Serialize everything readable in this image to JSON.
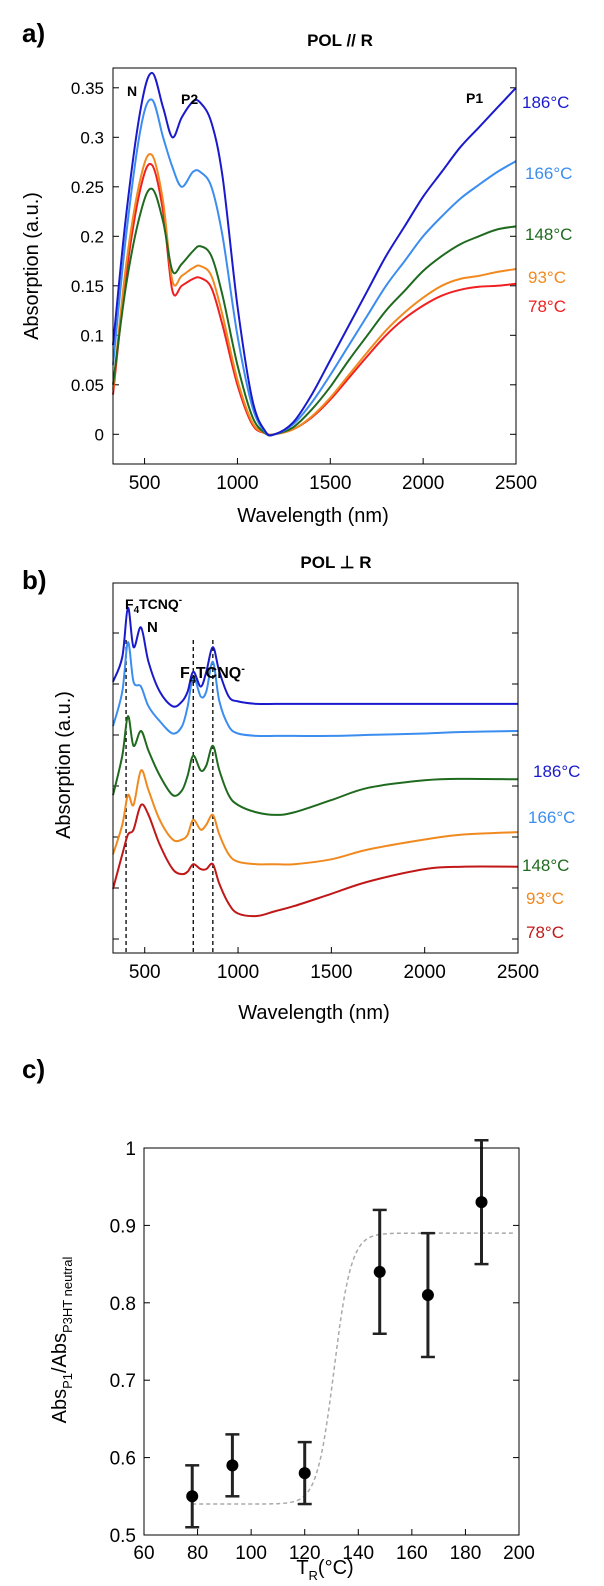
{
  "chart_data": [
    {
      "panel_label": "a)",
      "type": "line",
      "title": "POL // R",
      "xlabel": "Wavelength (nm)",
      "ylabel": "Absorption (a.u.)",
      "xlim": [
        330,
        2500
      ],
      "ylim": [
        -0.03,
        0.37
      ],
      "xticks": [
        500,
        1000,
        1500,
        2000,
        2500
      ],
      "yticks": [
        0,
        0.05,
        0.1,
        0.15,
        0.2,
        0.25,
        0.3,
        0.35
      ],
      "ytick_labels": [
        "0",
        "0.05",
        "0.1",
        "0.15",
        "0.2",
        "0.25",
        "0.3",
        "0.35"
      ],
      "annotations": [
        {
          "text": "N",
          "x": 440,
          "y": 0.355
        },
        {
          "text": "P2",
          "x": 790,
          "y": 0.345
        },
        {
          "text": "P1",
          "x": 2230,
          "y": 0.345
        }
      ],
      "x": [
        330,
        400,
        480,
        540,
        600,
        650,
        700,
        760,
        800,
        860,
        920,
        1000,
        1080,
        1150,
        1200,
        1300,
        1400,
        1500,
        1600,
        1700,
        1800,
        1900,
        2000,
        2100,
        2200,
        2300,
        2400,
        2500
      ],
      "series": [
        {
          "name": "186°C",
          "color": "#1a1acc",
          "values": [
            0.09,
            0.22,
            0.33,
            0.365,
            0.33,
            0.3,
            0.32,
            0.336,
            0.335,
            0.315,
            0.26,
            0.13,
            0.035,
            0.003,
            0.0,
            0.012,
            0.04,
            0.075,
            0.11,
            0.145,
            0.18,
            0.21,
            0.24,
            0.265,
            0.29,
            0.31,
            0.33,
            0.35
          ]
        },
        {
          "name": "166°C",
          "color": "#3c8df0",
          "values": [
            0.07,
            0.2,
            0.31,
            0.338,
            0.3,
            0.27,
            0.25,
            0.265,
            0.265,
            0.25,
            0.2,
            0.1,
            0.028,
            0.002,
            0.0,
            0.01,
            0.032,
            0.06,
            0.09,
            0.12,
            0.15,
            0.175,
            0.2,
            0.22,
            0.238,
            0.252,
            0.265,
            0.276
          ]
        },
        {
          "name": "148°C",
          "color": "#1f6a1f",
          "values": [
            0.05,
            0.15,
            0.225,
            0.248,
            0.215,
            0.165,
            0.172,
            0.185,
            0.19,
            0.18,
            0.14,
            0.07,
            0.018,
            0.001,
            0.0,
            0.007,
            0.025,
            0.048,
            0.075,
            0.1,
            0.125,
            0.145,
            0.165,
            0.18,
            0.192,
            0.2,
            0.207,
            0.21
          ]
        },
        {
          "name": "93°C",
          "color": "#f08a20",
          "values": [
            0.045,
            0.17,
            0.26,
            0.282,
            0.235,
            0.155,
            0.16,
            0.168,
            0.17,
            0.16,
            0.12,
            0.055,
            0.012,
            0.001,
            0.0,
            0.005,
            0.018,
            0.037,
            0.06,
            0.083,
            0.105,
            0.123,
            0.138,
            0.15,
            0.157,
            0.16,
            0.164,
            0.167
          ]
        },
        {
          "name": "78°C",
          "color": "#f02020",
          "values": [
            0.04,
            0.16,
            0.25,
            0.272,
            0.225,
            0.145,
            0.15,
            0.157,
            0.158,
            0.148,
            0.11,
            0.05,
            0.01,
            0.001,
            0.0,
            0.005,
            0.017,
            0.035,
            0.057,
            0.079,
            0.1,
            0.117,
            0.13,
            0.14,
            0.146,
            0.149,
            0.15,
            0.152
          ]
        }
      ]
    },
    {
      "panel_label": "b)",
      "type": "line",
      "title": "POL ⊥ R",
      "xlabel": "Wavelength (nm)",
      "ylabel": "Absorption (a.u.)",
      "xlim": [
        330,
        2500
      ],
      "xticks": [
        500,
        1000,
        1500,
        2000,
        2500
      ],
      "annotations": [
        {
          "base": "F",
          "sub": "4",
          "rest": "TCNQ",
          "sup": "-"
        },
        {
          "text": "N"
        },
        {
          "base": "F",
          "sub": "4",
          "rest": "TCNQ",
          "sup": "-"
        }
      ],
      "dashed_lines_x": [
        400,
        760,
        865
      ],
      "x": [
        330,
        380,
        410,
        440,
        480,
        520,
        580,
        650,
        700,
        730,
        760,
        800,
        830,
        865,
        900,
        950,
        1000,
        1100,
        1200,
        1300,
        1500,
        1700,
        2000,
        2200,
        2500
      ],
      "series": [
        {
          "name": "186°C",
          "color": "#1a1acc",
          "values": [
            0.75,
            0.8,
            0.9,
            0.82,
            0.86,
            0.79,
            0.73,
            0.7,
            0.71,
            0.73,
            0.77,
            0.74,
            0.77,
            0.82,
            0.77,
            0.72,
            0.71,
            0.705,
            0.705,
            0.705,
            0.705,
            0.705,
            0.705,
            0.705,
            0.705
          ]
        },
        {
          "name": "166°C",
          "color": "#3c8df0",
          "values": [
            0.66,
            0.73,
            0.83,
            0.75,
            0.74,
            0.7,
            0.67,
            0.645,
            0.66,
            0.7,
            0.76,
            0.72,
            0.73,
            0.79,
            0.71,
            0.66,
            0.645,
            0.64,
            0.64,
            0.64,
            0.64,
            0.642,
            0.645,
            0.648,
            0.65
          ]
        },
        {
          "name": "148°C",
          "color": "#1f6a1f",
          "values": [
            0.52,
            0.6,
            0.68,
            0.62,
            0.65,
            0.61,
            0.56,
            0.52,
            0.53,
            0.56,
            0.6,
            0.57,
            0.58,
            0.62,
            0.57,
            0.52,
            0.5,
            0.485,
            0.48,
            0.485,
            0.51,
            0.535,
            0.55,
            0.553,
            0.552
          ]
        },
        {
          "name": "93°C",
          "color": "#f08a20",
          "values": [
            0.4,
            0.46,
            0.52,
            0.5,
            0.57,
            0.53,
            0.47,
            0.43,
            0.43,
            0.44,
            0.47,
            0.45,
            0.46,
            0.48,
            0.44,
            0.4,
            0.385,
            0.38,
            0.38,
            0.38,
            0.39,
            0.41,
            0.43,
            0.44,
            0.445
          ]
        },
        {
          "name": "78°C",
          "color": "#c01818",
          "values": [
            0.33,
            0.4,
            0.44,
            0.45,
            0.5,
            0.48,
            0.42,
            0.37,
            0.36,
            0.365,
            0.38,
            0.37,
            0.37,
            0.38,
            0.34,
            0.3,
            0.28,
            0.275,
            0.285,
            0.295,
            0.32,
            0.345,
            0.37,
            0.375,
            0.375
          ]
        }
      ]
    },
    {
      "panel_label": "c)",
      "type": "scatter",
      "xlabel_base": "T",
      "xlabel_sub": "R",
      "xlabel_rest": "(°C)",
      "ylabel_parts": [
        "Abs",
        "P1",
        "/Abs",
        "P3HT neutral"
      ],
      "xlim": [
        60,
        200
      ],
      "ylim": [
        0.5,
        1.0
      ],
      "xticks": [
        60,
        80,
        100,
        120,
        140,
        160,
        180,
        200
      ],
      "yticks": [
        0.5,
        0.6,
        0.7,
        0.8,
        0.9,
        1.0
      ],
      "ytick_labels": [
        "0.5",
        "0.6",
        "0.7",
        "0.8",
        "0.9",
        "1"
      ],
      "points": [
        {
          "x": 78,
          "y": 0.55,
          "err": 0.04
        },
        {
          "x": 93,
          "y": 0.59,
          "err": 0.04
        },
        {
          "x": 120,
          "y": 0.58,
          "err": 0.04
        },
        {
          "x": 148,
          "y": 0.84,
          "err": 0.08
        },
        {
          "x": 166,
          "y": 0.81,
          "err": 0.08
        },
        {
          "x": 186,
          "y": 0.93,
          "err": 0.08
        }
      ],
      "fit_curve": {
        "color": "#aaaaaa",
        "x_range": [
          78,
          198
        ],
        "low": 0.54,
        "high": 0.89,
        "center": 131,
        "width": 3.2
      }
    }
  ]
}
